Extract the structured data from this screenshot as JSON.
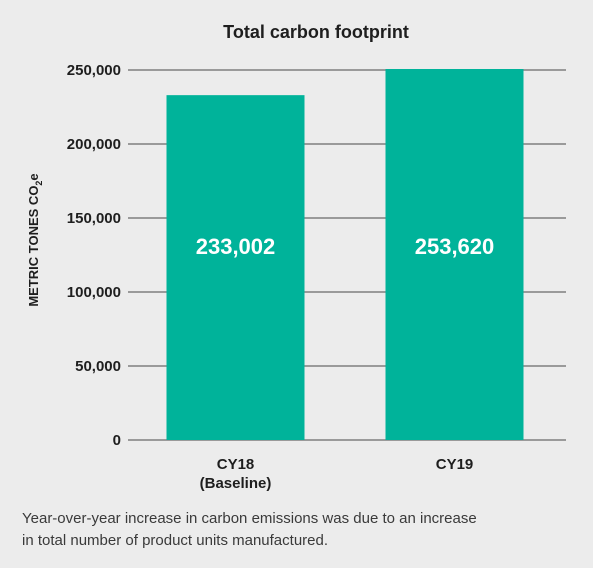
{
  "chart_data": {
    "type": "bar",
    "title": "Total carbon footprint",
    "ylabel": "METRIC TONES CO",
    "ylabel_subscript": "2",
    "ylabel_suffix": "e",
    "xlabel": "",
    "ylim": [
      0,
      250000
    ],
    "y_ticks": [
      0,
      50000,
      100000,
      150000,
      200000,
      250000
    ],
    "y_tick_labels": [
      "0",
      "50,000",
      "100,000",
      "150,000",
      "200,000",
      "250,000"
    ],
    "categories": [
      {
        "line1": "CY18",
        "line2": "(Baseline)"
      },
      {
        "line1": "CY19",
        "line2": ""
      }
    ],
    "values": [
      233002,
      253620
    ],
    "value_labels": [
      "233,002",
      "253,620"
    ],
    "grid": true,
    "bar_color": "#00b39a",
    "grid_color": "#9a9a9a",
    "value_label_color": "#ffffff"
  },
  "caption": "Year-over-year increase in carbon emissions was due to an increase in total number of product units manufactured."
}
